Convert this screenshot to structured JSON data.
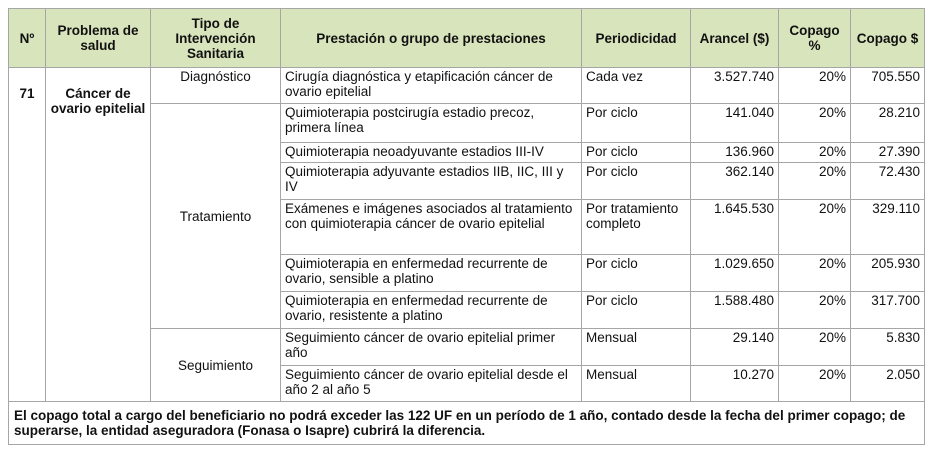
{
  "table": {
    "headers": [
      "Nº",
      "Problema de salud",
      "Tipo de Intervención Sanitaria",
      "Prestación o grupo de prestaciones",
      "Periodicidad",
      "Arancel ($)",
      "Copago %",
      "Copago $"
    ],
    "number": "71",
    "problem": "Cáncer de ovario epitelial",
    "groups": [
      {
        "intervention": "Diagnóstico",
        "rows": [
          [
            "Cirugía diagnóstica y etapificación cáncer de ovario epitelial",
            "Cada vez",
            "3.527.740",
            "20%",
            "705.550"
          ]
        ]
      },
      {
        "intervention": "Tratamiento",
        "rows": [
          [
            "Quimioterapia postcirugía estadio precoz, primera línea",
            "Por ciclo",
            "141.040",
            "20%",
            "28.210"
          ],
          [
            "Quimioterapia neoadyuvante estadios III-IV",
            "Por ciclo",
            "136.960",
            "20%",
            "27.390"
          ],
          [
            "Quimioterapia adyuvante estadios IIB, IIC, III y IV",
            "Por ciclo",
            "362.140",
            "20%",
            "72.430"
          ],
          [
            "Exámenes e imágenes asociados al tratamiento con quimioterapia cáncer de ovario epitelial",
            "Por tratamiento completo",
            "1.645.530",
            "20%",
            "329.110"
          ],
          [
            "Quimioterapia en enfermedad recurrente de ovario, sensible a platino",
            "Por ciclo",
            "1.029.650",
            "20%",
            "205.930"
          ],
          [
            "Quimioterapia en enfermedad  recurrente de ovario, resistente a platino",
            "Por ciclo",
            "1.588.480",
            "20%",
            "317.700"
          ]
        ]
      },
      {
        "intervention": "Seguimiento",
        "rows": [
          [
            "Seguimiento cáncer de ovario epitelial primer año",
            "Mensual",
            "29.140",
            "20%",
            "5.830"
          ],
          [
            "Seguimiento cáncer de ovario epitelial desde el año 2 al año 5",
            "Mensual",
            "10.270",
            "20%",
            "2.050"
          ]
        ]
      }
    ],
    "footer": "El copago total a cargo del beneficiario no podrá exceder las 122 UF en un período de 1 año, contado desde la fecha del primer copago; de superarse, la entidad aseguradora (Fonasa o Isapre) cubrirá la diferencia."
  }
}
